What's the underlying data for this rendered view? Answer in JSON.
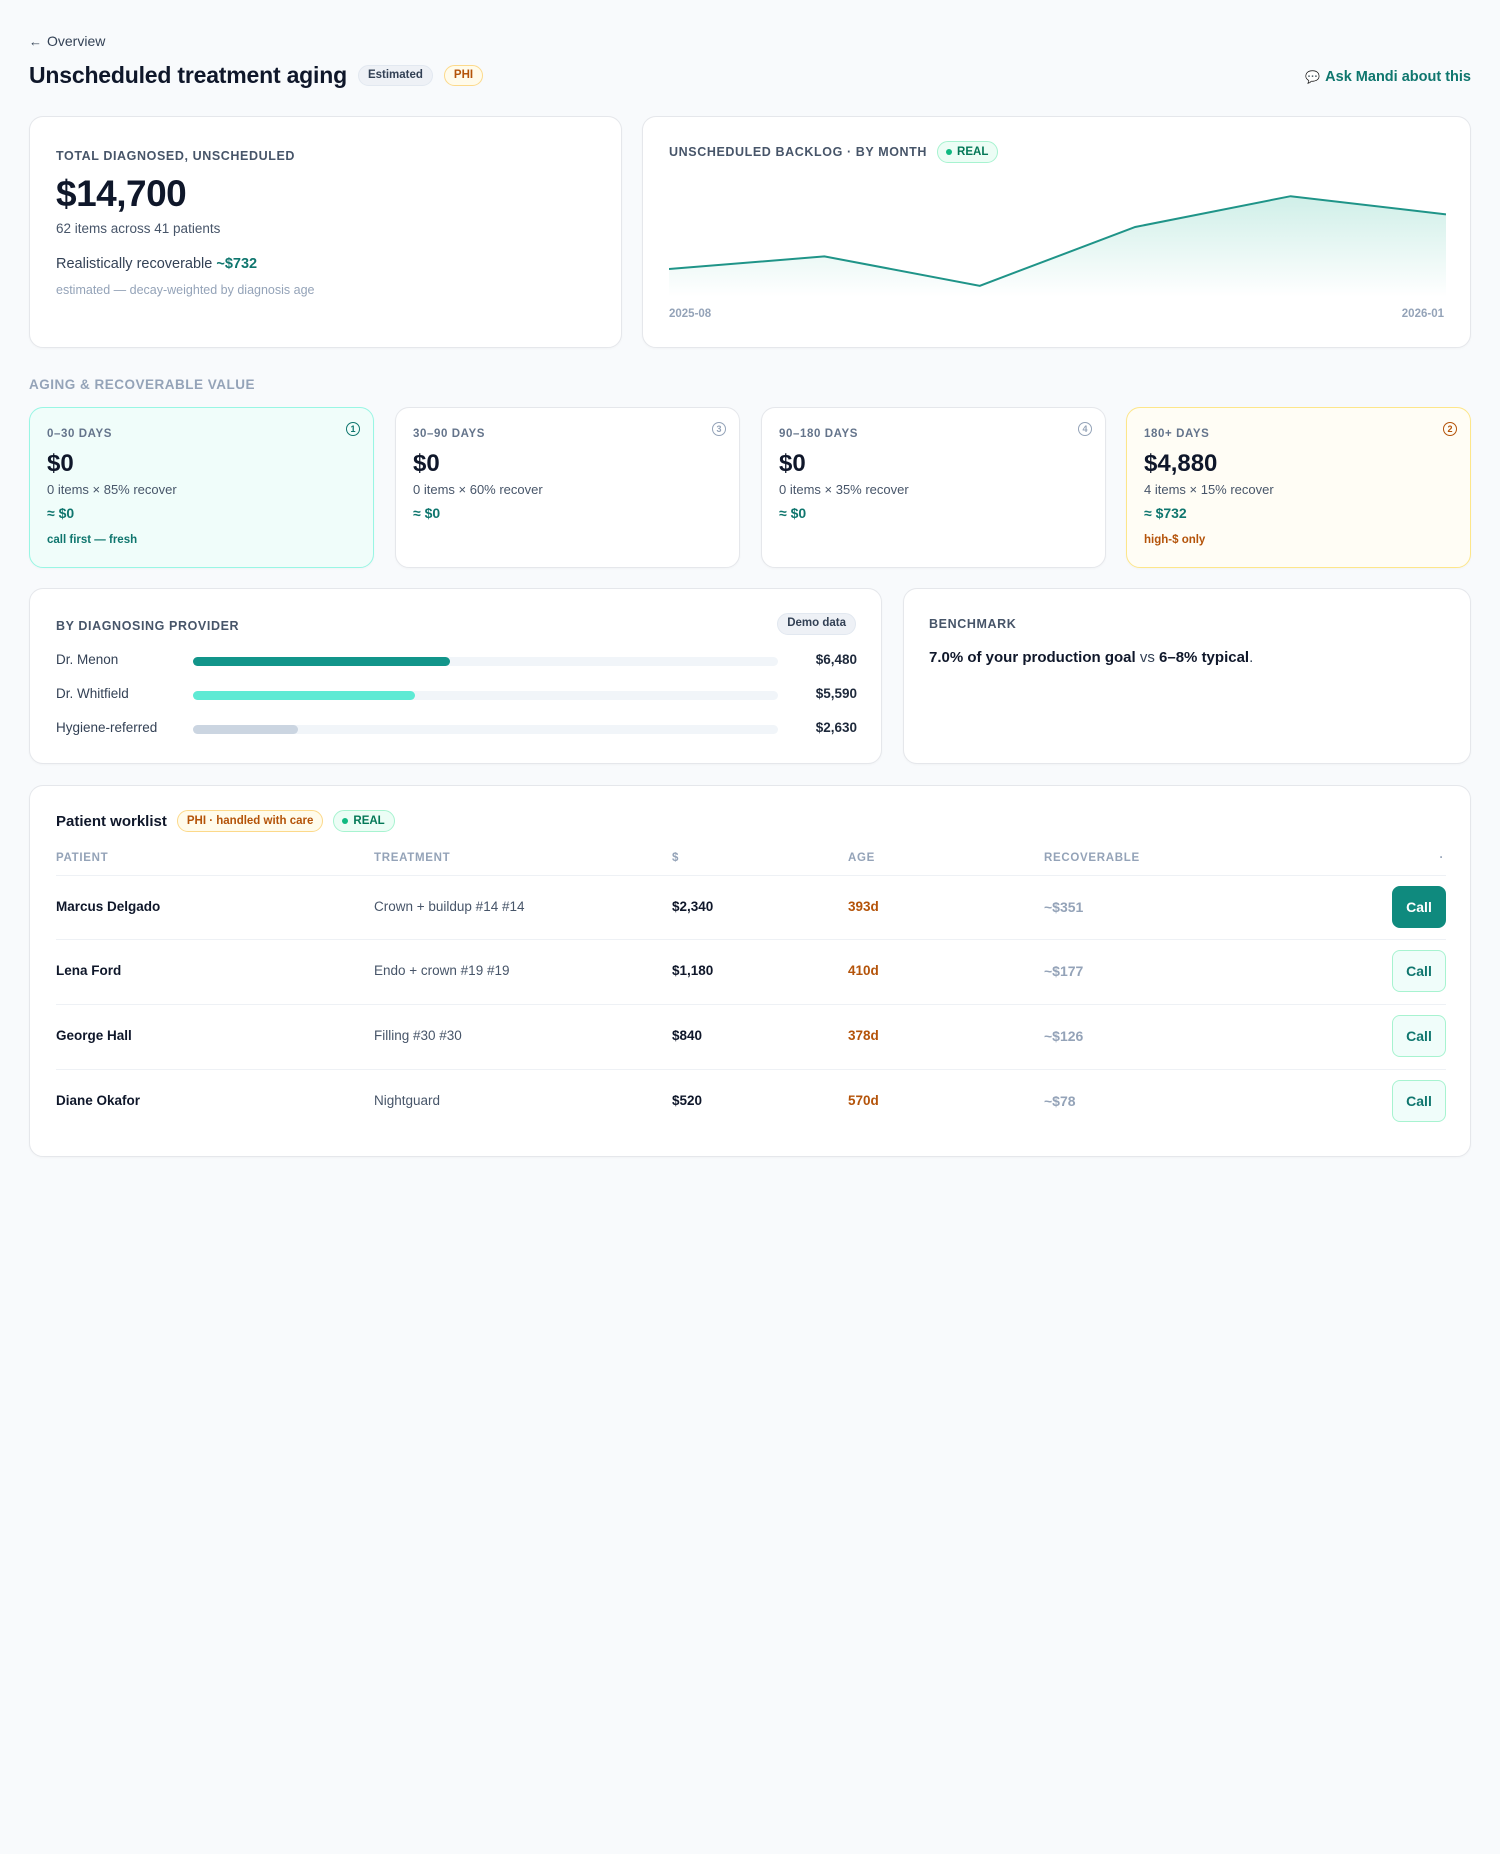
{
  "nav": {
    "back_label": "Overview"
  },
  "header": {
    "title": "Unscheduled treatment aging",
    "badge_estimated": "Estimated",
    "badge_phi": "PHI",
    "ask_label": "Ask Mandi about this"
  },
  "summary": {
    "label": "TOTAL DIAGNOSED, UNSCHEDULED",
    "total": "$14,700",
    "items_text": "62 items across 41 patients",
    "recoverable_prefix": "Realistically recoverable",
    "recoverable_value": "~$732",
    "note": "estimated — decay-weighted by diagnosis age"
  },
  "backlog_chart": {
    "label": "UNSCHEDULED BACKLOG · BY MONTH",
    "badge": "REAL",
    "x_start_label": "2025-08",
    "x_end_label": "2026-01"
  },
  "chart_data": {
    "type": "area",
    "x": [
      "2025-08",
      "2025-09",
      "2025-10",
      "2025-11",
      "2025-12",
      "2026-01"
    ],
    "series": [
      {
        "values": [
          2,
          2.9,
          0.8,
          5,
          7.2,
          5.9
        ]
      }
    ],
    "ylim": [
      0,
      8
    ],
    "grid": false,
    "colors": {
      "line": "#1f9488",
      "fill": "#cdeee7"
    }
  },
  "aging": {
    "section_label": "AGING & RECOVERABLE VALUE",
    "buckets": [
      {
        "label": "0–30 DAYS",
        "badge": "1",
        "value": "$0",
        "sub": "0 items × 85% recover",
        "recover": "≈ $0",
        "note": "call first — fresh"
      },
      {
        "label": "30–90 DAYS",
        "badge": "3",
        "value": "$0",
        "sub": "0 items × 60% recover",
        "recover": "≈ $0",
        "note": ""
      },
      {
        "label": "90–180 DAYS",
        "badge": "4",
        "value": "$0",
        "sub": "0 items × 35% recover",
        "recover": "≈ $0",
        "note": ""
      },
      {
        "label": "180+ DAYS",
        "badge": "2",
        "value": "$4,880",
        "sub": "4 items × 15% recover",
        "recover": "≈ $732",
        "note": "high-$ only"
      }
    ]
  },
  "providers": {
    "label": "BY DIAGNOSING PROVIDER",
    "badge": "Demo data",
    "rows": [
      {
        "name": "Dr. Menon",
        "value": "$6,480",
        "share": 0.44,
        "color": "#12958a"
      },
      {
        "name": "Dr. Whitfield",
        "value": "$5,590",
        "share": 0.38,
        "color": "#5eead4"
      },
      {
        "name": "Hygiene-referred",
        "value": "$2,630",
        "share": 0.18,
        "color": "#cbd5e1"
      }
    ]
  },
  "benchmark": {
    "label": "BENCHMARK",
    "strong1": "7.0% of your production goal",
    "mid": " vs ",
    "strong2": "6–8% typical",
    "end": "."
  },
  "worklist": {
    "title": "Patient worklist",
    "badge_care": "PHI · handled with care",
    "badge_real": "REAL",
    "columns": {
      "patient": "PATIENT",
      "treatment": "TREATMENT",
      "amount": "$",
      "age": "AGE",
      "recoverable": "RECOVERABLE",
      "action": "·"
    },
    "rows": [
      {
        "patient": "Marcus Delgado",
        "treatment": "Crown + buildup #14 #14",
        "amount": "$2,340",
        "age": "393d",
        "recoverable": "~$351",
        "action": "Call"
      },
      {
        "patient": "Lena Ford",
        "treatment": "Endo + crown #19 #19",
        "amount": "$1,180",
        "age": "410d",
        "recoverable": "~$177",
        "action": "Call"
      },
      {
        "patient": "George Hall",
        "treatment": "Filling #30 #30",
        "amount": "$840",
        "age": "378d",
        "recoverable": "~$126",
        "action": "Call"
      },
      {
        "patient": "Diane Okafor",
        "treatment": "Nightguard",
        "amount": "$520",
        "age": "570d",
        "recoverable": "~$78",
        "action": "Call"
      }
    ]
  }
}
